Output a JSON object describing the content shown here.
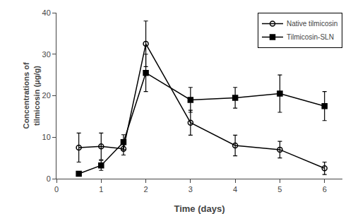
{
  "chart_data": {
    "type": "line",
    "xlabel": "Time (days)",
    "ylabel": "Concentrations of\ntilmicosin (μg/g)",
    "xlim": [
      0,
      6.4
    ],
    "ylim": [
      0,
      40
    ],
    "xticks": [
      0,
      1,
      2,
      3,
      4,
      5,
      6
    ],
    "yticks": [
      0,
      10,
      20,
      30,
      40
    ],
    "grid": false,
    "legend": "upper right",
    "series": [
      {
        "name": "Native tilmicosin",
        "color": "#000000",
        "marker": "circle-open",
        "line_style": "solid",
        "x": [
          0.5,
          1.0,
          1.5,
          2.0,
          3.0,
          4.0,
          5.0,
          6.0
        ],
        "values": [
          7.5,
          7.8,
          7.2,
          32.5,
          13.5,
          8.0,
          7.0,
          2.5
        ],
        "yerr": [
          3.5,
          3.2,
          1.5,
          5.5,
          3.0,
          2.5,
          2.0,
          1.5
        ]
      },
      {
        "name": "Tilmicosin-SLN",
        "color": "#000000",
        "marker": "square",
        "line_style": "solid",
        "x": [
          0.5,
          1.0,
          1.5,
          2.0,
          3.0,
          4.0,
          5.0,
          6.0
        ],
        "values": [
          1.2,
          3.2,
          8.8,
          25.5,
          19.0,
          19.5,
          20.5,
          17.5
        ],
        "yerr": [
          0.3,
          1.2,
          1.8,
          4.5,
          3.0,
          2.5,
          4.5,
          3.5
        ]
      }
    ]
  }
}
